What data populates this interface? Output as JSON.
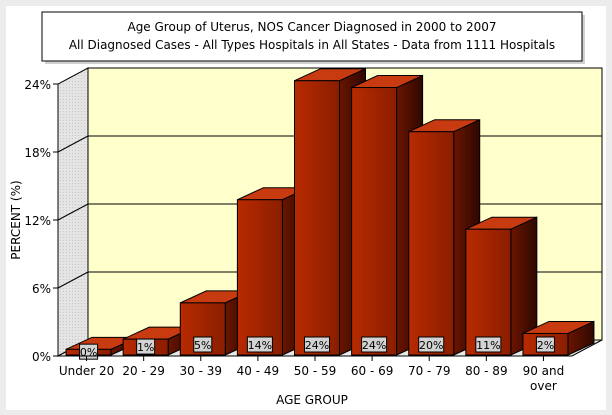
{
  "chart_data": {
    "type": "bar",
    "title": "Age Group of Uterus, NOS Cancer  Diagnosed in 2000 to 2007",
    "subtitle": "All Diagnosed Cases -  All Types Hospitals in All States - Data from 1111 Hospitals",
    "xlabel": "AGE GROUP",
    "ylabel": "PERCENT (%)",
    "ylim": [
      0,
      24
    ],
    "yticks": [
      "0%",
      "6%",
      "12%",
      "18%",
      "24%"
    ],
    "ytick_values": [
      0,
      6,
      12,
      18,
      24
    ],
    "categories": [
      "Under 20",
      "20 - 29",
      "30 - 39",
      "40 - 49",
      "50 - 59",
      "60 - 69",
      "70 - 79",
      "80 - 89",
      "90 and over"
    ],
    "values": [
      0.5,
      1.4,
      4.6,
      13.7,
      24.2,
      23.6,
      19.7,
      11.1,
      1.9
    ],
    "data_labels": [
      "0%",
      "1%",
      "5%",
      "14%",
      "24%",
      "24%",
      "20%",
      "11%",
      "2%"
    ],
    "grid": true,
    "colors": {
      "bar_front": "#b32800",
      "bar_side": "#4a0f00",
      "bar_top": "#c83a10",
      "wall": "#ffffcc",
      "label_bg": "#d3d3d3"
    }
  }
}
